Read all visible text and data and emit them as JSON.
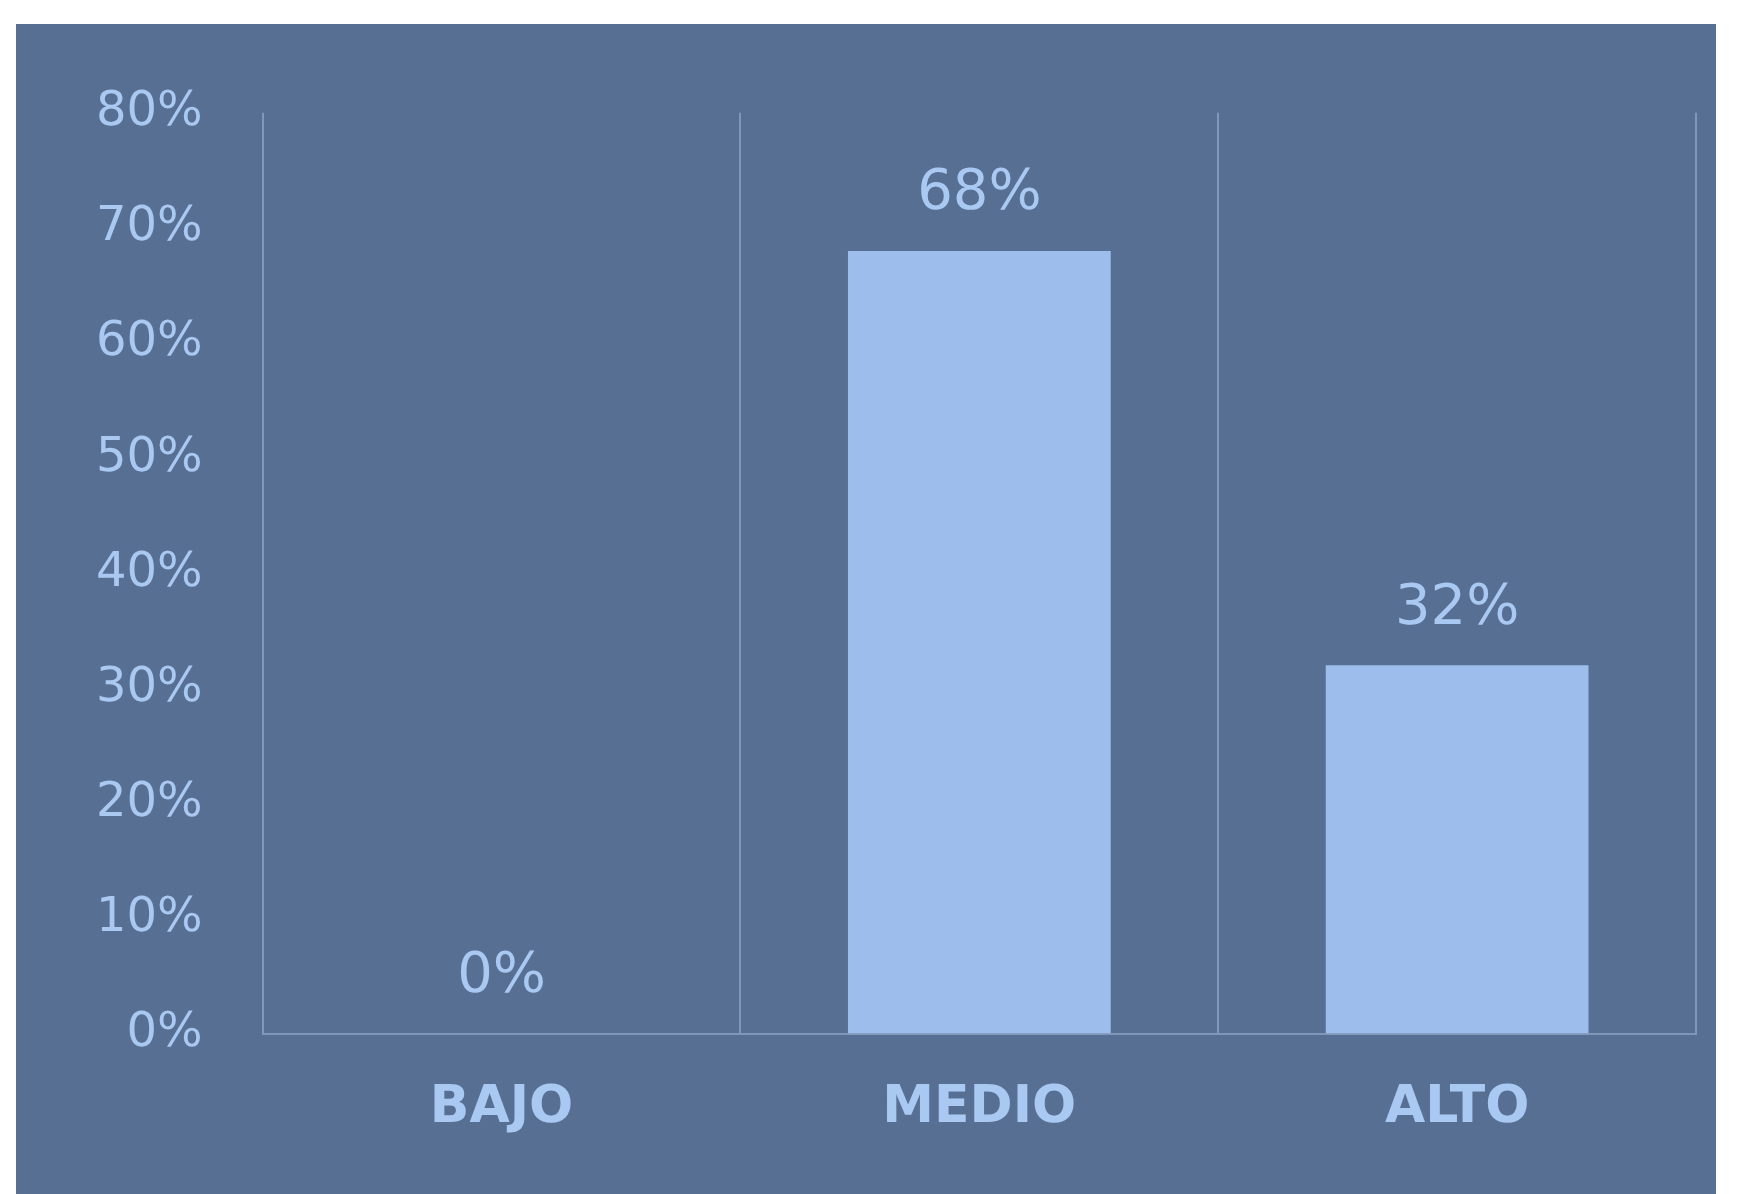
{
  "chart_data": {
    "type": "bar",
    "categories": [
      "BAJO",
      "MEDIO",
      "ALTO"
    ],
    "values": [
      0,
      68,
      32
    ],
    "color": "#9dbdec",
    "ylim": [
      0,
      80
    ],
    "yticks": [
      {
        "value": 0,
        "label": "0%"
      },
      {
        "value": 10,
        "label": "10%"
      },
      {
        "value": 20,
        "label": "20%"
      },
      {
        "value": 30,
        "label": "30%"
      },
      {
        "value": 40,
        "label": "40%"
      },
      {
        "value": 50,
        "label": "50%"
      },
      {
        "value": 60,
        "label": "60%"
      },
      {
        "value": 70,
        "label": "70%"
      },
      {
        "value": 80,
        "label": "80%"
      }
    ],
    "value_labels": [
      "0%",
      "68%",
      "32%"
    ],
    "grid": "x",
    "legend": false
  }
}
